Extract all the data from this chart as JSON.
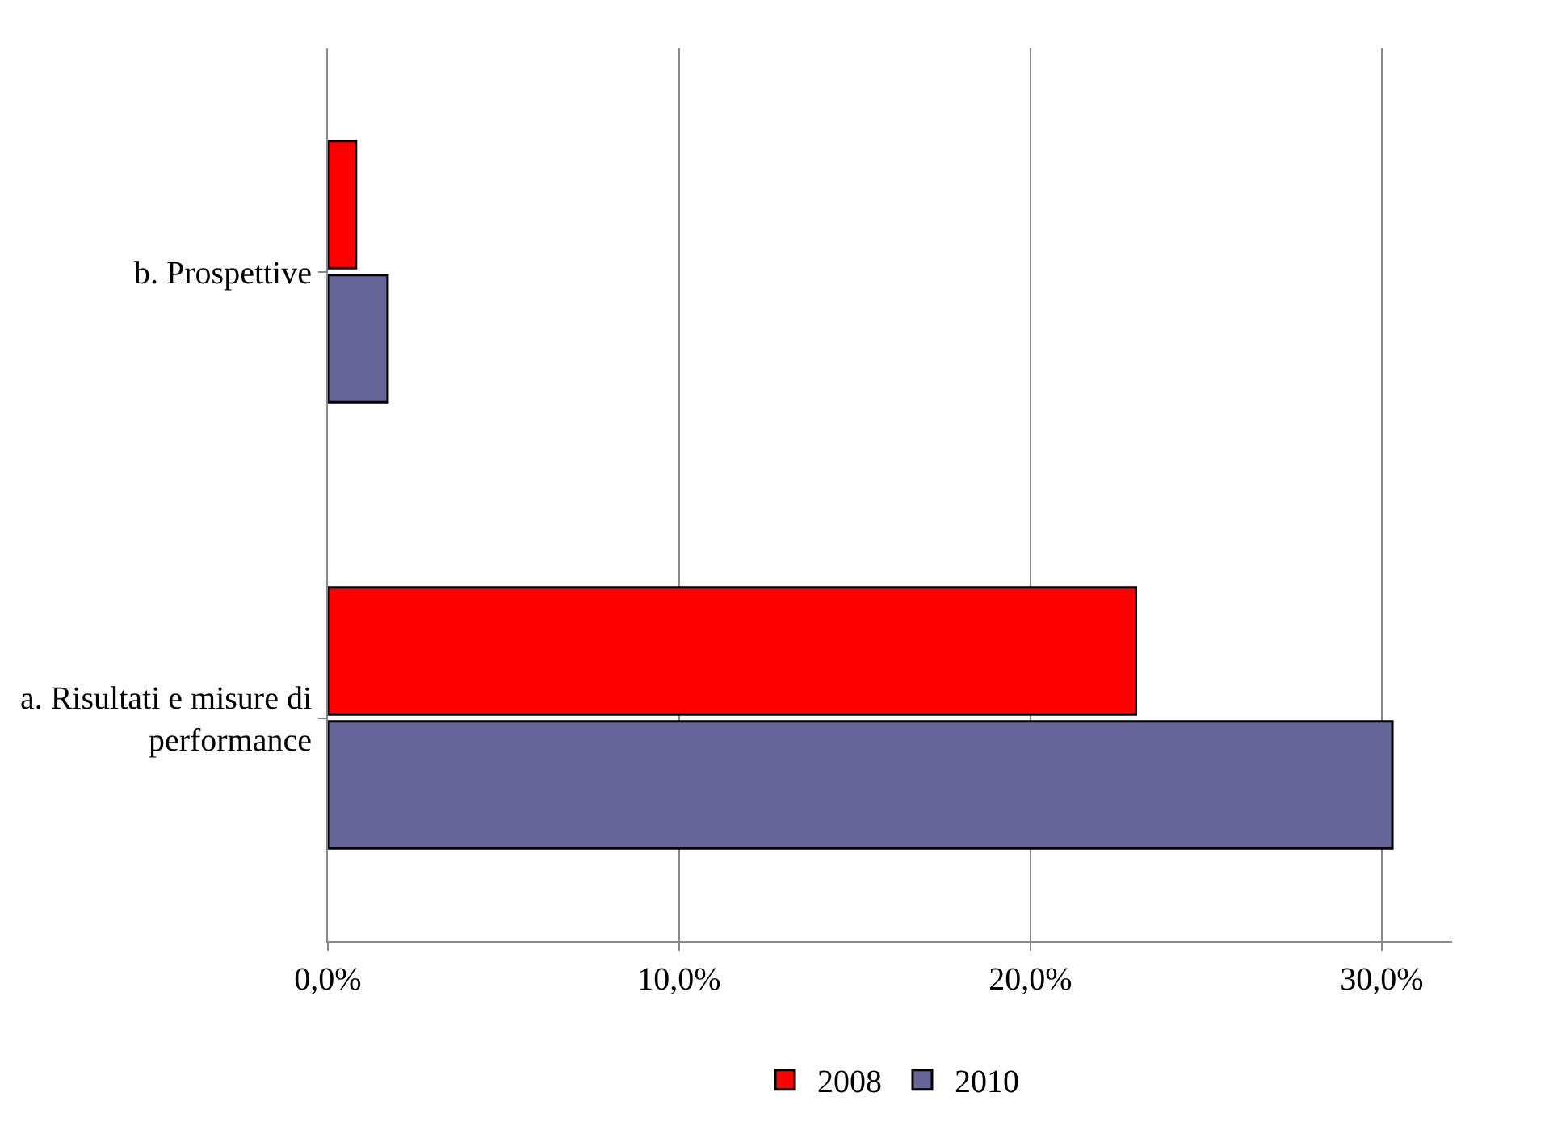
{
  "chart_data": {
    "type": "bar",
    "orientation": "horizontal",
    "categories": [
      "b. Prospettive",
      "a. Risultati e misure di performance"
    ],
    "series": [
      {
        "name": "2008",
        "color": "#ff0000",
        "values": [
          0.8,
          23.0
        ]
      },
      {
        "name": "2010",
        "color": "#66669a",
        "values": [
          1.7,
          30.3
        ]
      }
    ],
    "xlim": [
      0,
      32
    ],
    "xticks": [
      {
        "value": 0,
        "label": "0,0%"
      },
      {
        "value": 10,
        "label": "10,0%"
      },
      {
        "value": 20,
        "label": "20,0%"
      },
      {
        "value": 30,
        "label": "30,0%"
      }
    ],
    "grid": "x",
    "legend": "bottom"
  }
}
